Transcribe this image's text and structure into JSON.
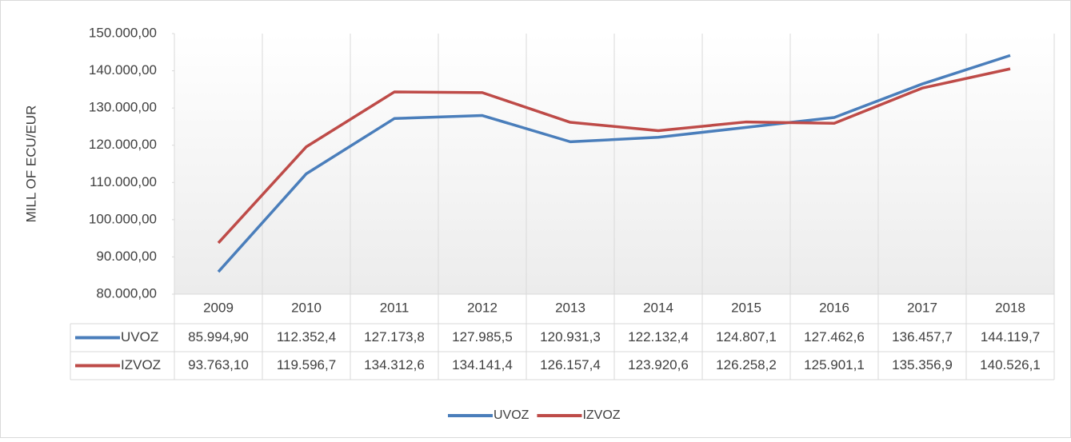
{
  "chart_data": {
    "type": "line",
    "ylabel": "MILL OF ECU/EUR",
    "categories": [
      "2009",
      "2010",
      "2011",
      "2012",
      "2013",
      "2014",
      "2015",
      "2016",
      "2017",
      "2018"
    ],
    "series": [
      {
        "name": "UVOZ",
        "color": "#4a7ebb",
        "values": [
          85994.9,
          112352.4,
          127173.8,
          127985.5,
          120931.3,
          122132.4,
          124807.1,
          127462.6,
          136457.7,
          144119.7
        ],
        "value_labels": [
          "85.994,90",
          "112.352,4",
          "127.173,8",
          "127.985,5",
          "120.931,3",
          "122.132,4",
          "124.807,1",
          "127.462,6",
          "136.457,7",
          "144.119,7"
        ]
      },
      {
        "name": "IZVOZ",
        "color": "#be4b48",
        "values": [
          93763.1,
          119596.7,
          134312.6,
          134141.4,
          126157.4,
          123920.6,
          126258.2,
          125901.1,
          135356.9,
          140526.1
        ],
        "value_labels": [
          "93.763,10",
          "119.596,7",
          "134.312,6",
          "134.141,4",
          "126.157,4",
          "123.920,6",
          "126.258,2",
          "125.901,1",
          "135.356,9",
          "140.526,1"
        ]
      }
    ],
    "ylim": [
      80000,
      150000
    ],
    "yticks": [
      {
        "value": 80000,
        "label": "80.000,00"
      },
      {
        "value": 90000,
        "label": "90.000,00"
      },
      {
        "value": 100000,
        "label": "100.000,00"
      },
      {
        "value": 110000,
        "label": "110.000,00"
      },
      {
        "value": 120000,
        "label": "120.000,00"
      },
      {
        "value": 130000,
        "label": "130.000,00"
      },
      {
        "value": 140000,
        "label": "140.000,00"
      },
      {
        "value": 150000,
        "label": "150.000,00"
      }
    ],
    "legend": "bottom"
  }
}
